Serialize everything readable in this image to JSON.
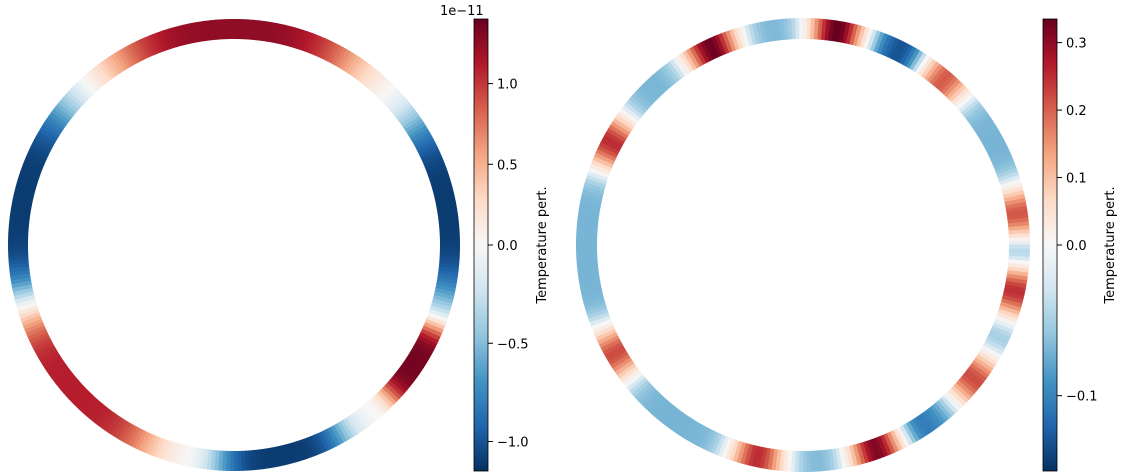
{
  "chart_data": [
    {
      "type": "heatmap",
      "geometry": "annulus",
      "title": "",
      "colormap": "RdBu_r",
      "colorbar": {
        "label": "Temperature pert.",
        "scale_label": "1e−11",
        "vmin": -1.15,
        "vmax": 1.4,
        "ticks": [
          1.0,
          0.5,
          0.0,
          -0.5,
          -1.0
        ],
        "tick_labels": [
          "1.0",
          "0.5",
          "0.0",
          "−0.5",
          "−1.0"
        ]
      },
      "field": {
        "description_source": "angular temperature perturbation pattern (angle in degrees, counter-clockwise from +x)",
        "lobes": [
          {
            "angle_deg": 90,
            "width_deg": 52,
            "amplitude": 1.25
          },
          {
            "angle_deg": 10,
            "width_deg": 40,
            "amplitude": -1.1
          },
          {
            "angle_deg": 168,
            "width_deg": 44,
            "amplitude": -1.1
          },
          {
            "angle_deg": 222,
            "width_deg": 40,
            "amplitude": 1.1
          },
          {
            "angle_deg": 283,
            "width_deg": 28,
            "amplitude": -1.1
          },
          {
            "angle_deg": 327,
            "width_deg": 18,
            "amplitude": 1.35
          }
        ]
      }
    },
    {
      "type": "heatmap",
      "geometry": "annulus",
      "title": "",
      "colormap": "RdBu_r",
      "colorbar": {
        "label": "Temperature pert.",
        "scale_label": "",
        "vmin": -0.15,
        "vmax": 0.335,
        "ticks": [
          0.3,
          0.2,
          0.1,
          0.0,
          -0.1
        ],
        "tick_labels": [
          "0.3",
          "0.2",
          "0.1",
          "0.0",
          "−0.1"
        ]
      },
      "field": {
        "background": -0.07,
        "hot_spots": [
          {
            "angle_deg": 81,
            "amplitude": 0.34
          },
          {
            "angle_deg": 115,
            "amplitude": 0.33
          },
          {
            "angle_deg": 50,
            "amplitude": 0.22
          },
          {
            "angle_deg": 152,
            "amplitude": 0.25
          },
          {
            "angle_deg": 8,
            "amplitude": 0.24
          },
          {
            "angle_deg": 348,
            "amplitude": 0.26
          },
          {
            "angle_deg": 210,
            "amplitude": 0.22
          },
          {
            "angle_deg": 322,
            "amplitude": 0.22
          },
          {
            "angle_deg": 290,
            "amplitude": 0.33
          },
          {
            "angle_deg": 258,
            "amplitude": 0.25
          }
        ],
        "cold_spots": [
          {
            "angle_deg": 62,
            "amplitude": -0.14
          },
          {
            "angle_deg": 0,
            "amplitude": -0.13
          },
          {
            "angle_deg": 300,
            "amplitude": -0.12
          }
        ]
      }
    }
  ]
}
